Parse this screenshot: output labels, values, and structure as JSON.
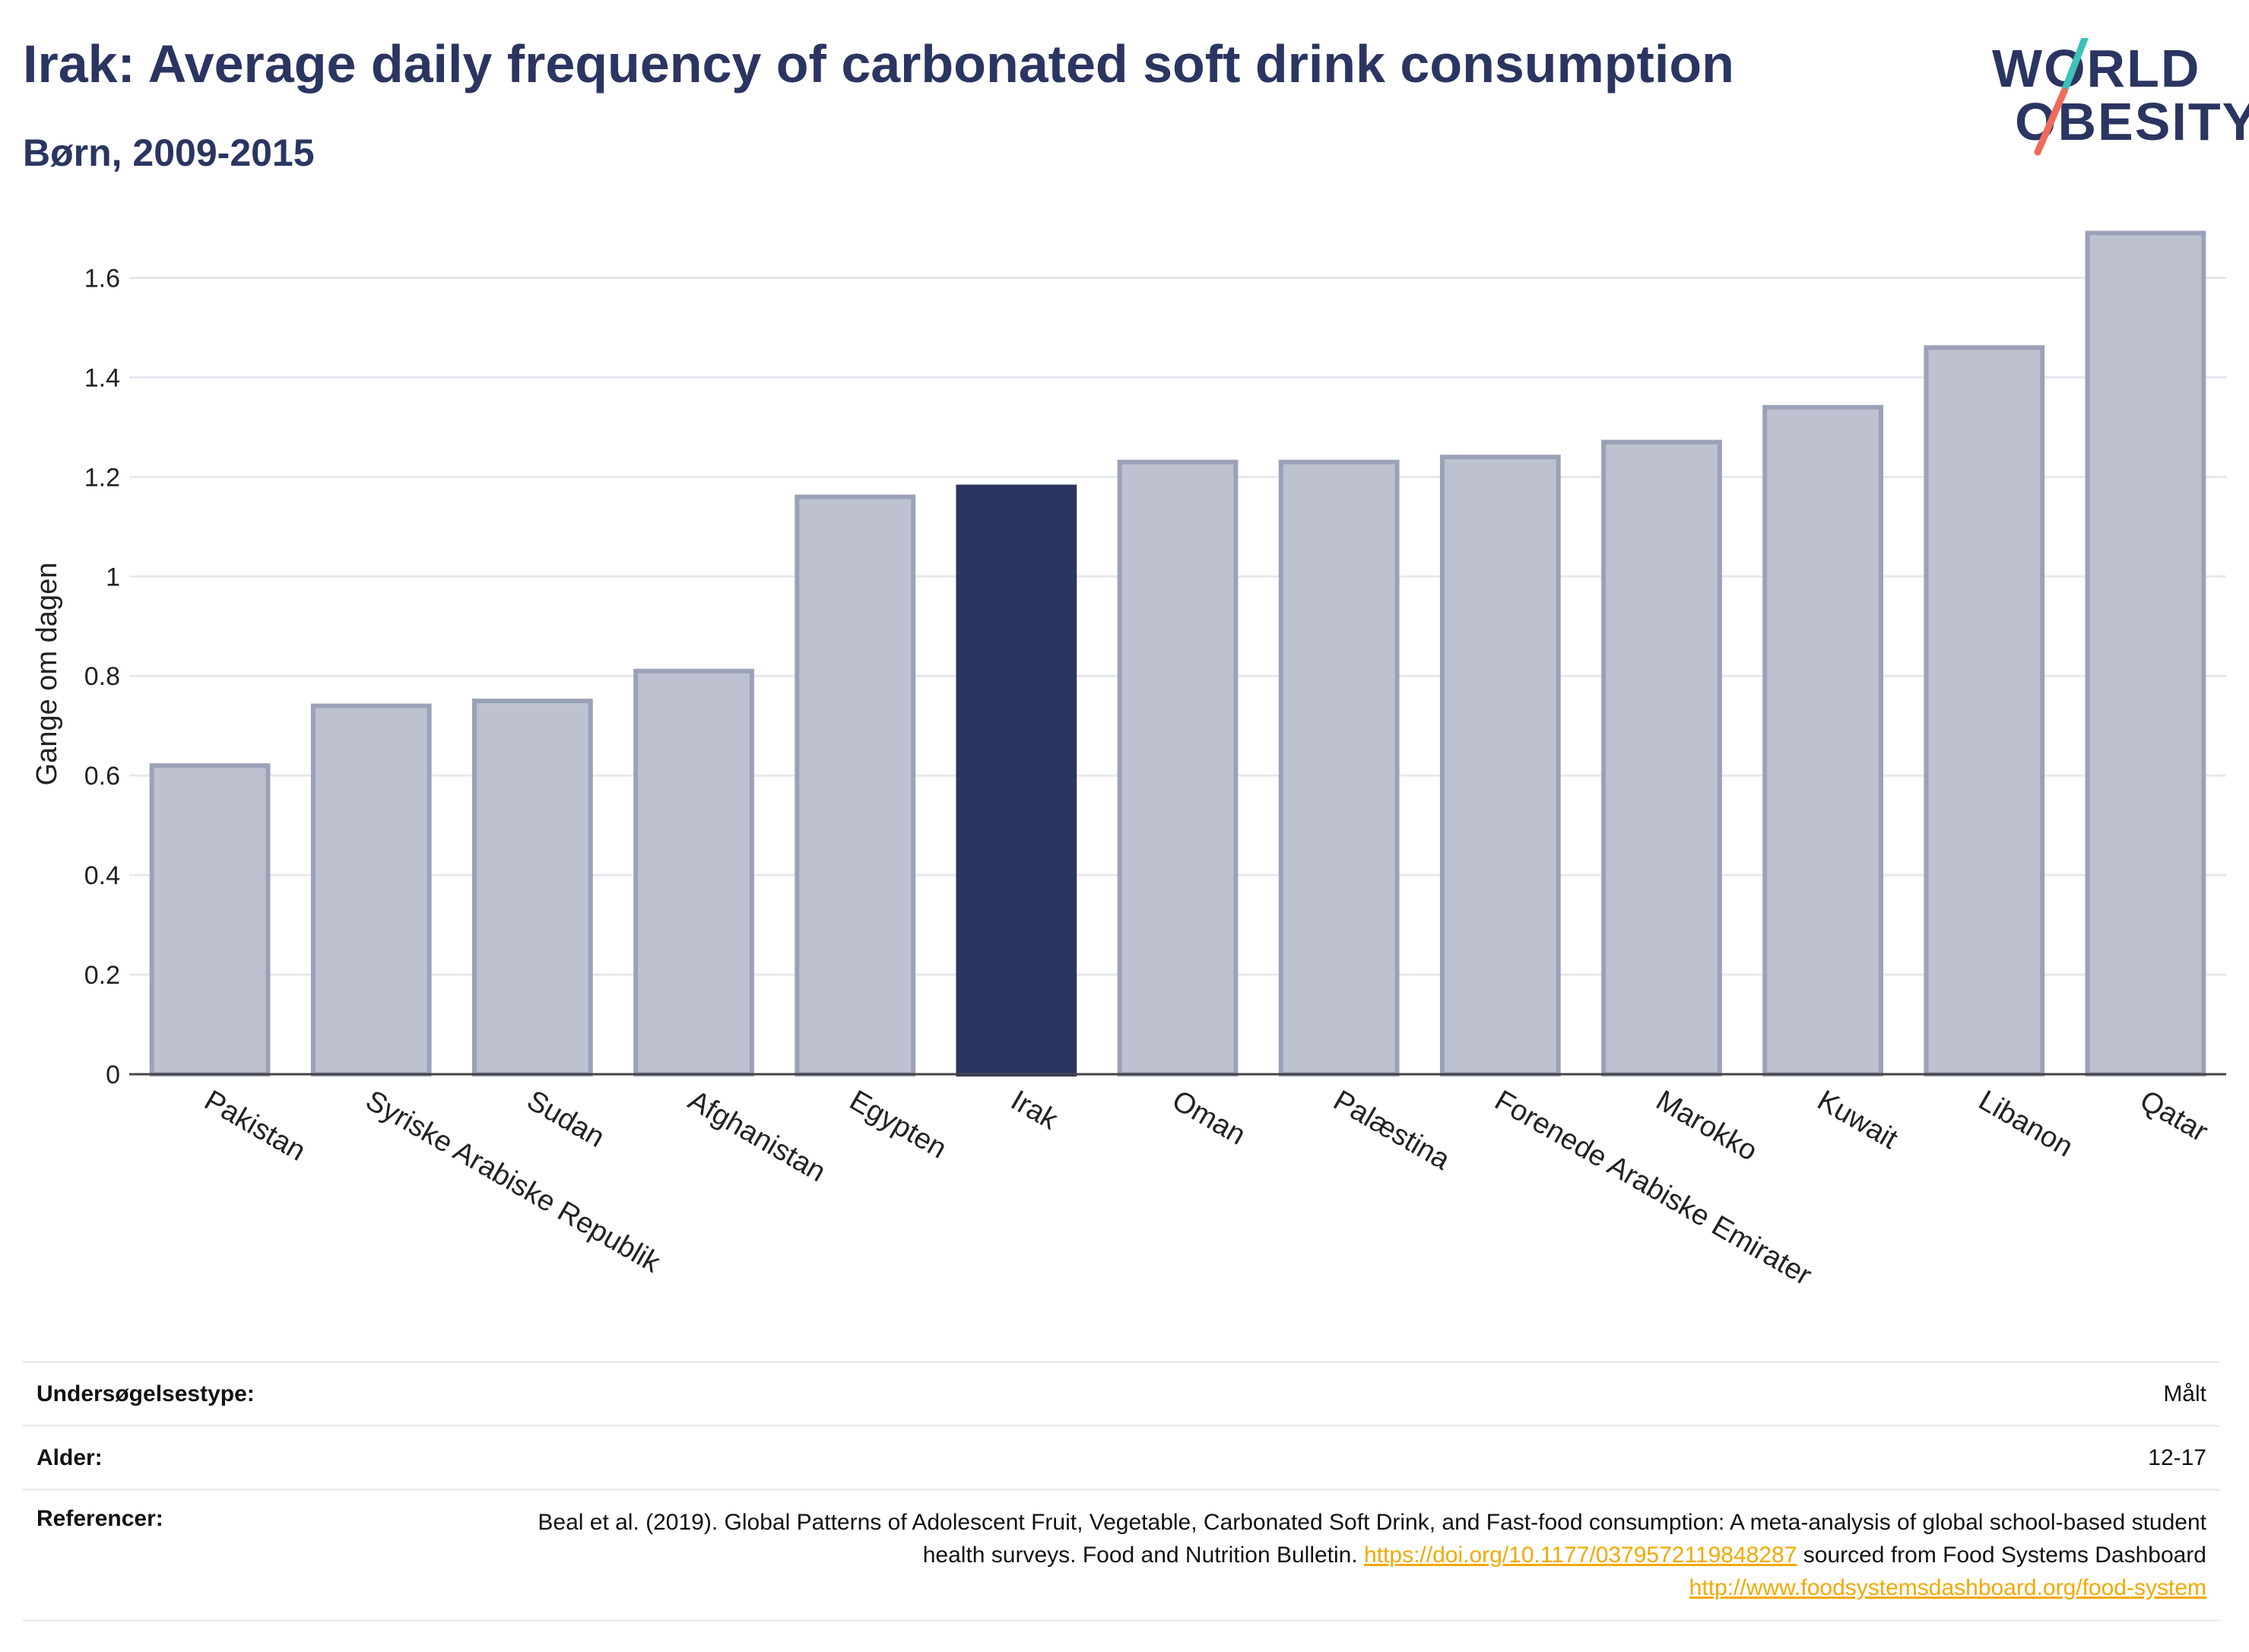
{
  "header": {
    "title": "Irak: Average daily frequency of carbonated soft drink consumption",
    "subtitle": "Børn, 2009-2015"
  },
  "logo": {
    "line1": "WORLD",
    "line2": "OBESITY",
    "accent_colors": [
      "#3ec1b8",
      "#ee6b5a"
    ]
  },
  "colors": {
    "highlight": "#2b3561",
    "bar": "#bec1cf",
    "bar_stroke": "#9ba1b8",
    "grid": "#e6e8ee",
    "link": "#f2a900"
  },
  "chart_data": {
    "type": "bar",
    "title": "Irak: Average daily frequency of carbonated soft drink consumption",
    "subtitle": "Børn, 2009-2015",
    "xlabel": "",
    "ylabel": "Gange om dagen",
    "ylim": [
      0,
      1.7
    ],
    "yticks": [
      0,
      0.2,
      0.4,
      0.6,
      0.8,
      1,
      1.2,
      1.4,
      1.6
    ],
    "ytick_labels": [
      "0",
      "0.2",
      "0.4",
      "0.6",
      "0.8",
      "1",
      "1.2",
      "1.4",
      "1.6"
    ],
    "grid": true,
    "highlight": "Irak",
    "categories": [
      "Pakistan",
      "Syriske Arabiske Republik",
      "Sudan",
      "Afghanistan",
      "Egypten",
      "Irak",
      "Oman",
      "Palæstina",
      "Forenede Arabiske Emirater",
      "Marokko",
      "Kuwait",
      "Libanon",
      "Qatar"
    ],
    "values": [
      0.62,
      0.74,
      0.75,
      0.81,
      1.16,
      1.18,
      1.23,
      1.23,
      1.24,
      1.27,
      1.34,
      1.46,
      1.69
    ]
  },
  "meta": {
    "survey_type_label": "Undersøgelsestype:",
    "survey_type_value": "Målt",
    "age_label": "Alder:",
    "age_value": "12-17",
    "references_label": "Referencer:",
    "ref_text1": "Beal et al. (2019). Global Patterns of Adolescent Fruit, Vegetable, Carbonated Soft Drink, and Fast-food consumption: A meta-analysis of global school-based student health surveys. Food and Nutrition Bulletin. ",
    "ref_link1": "https://doi.org/10.1177/0379572119848287",
    "ref_text2": " sourced from Food Systems Dashboard ",
    "ref_link2": "http://www.foodsystemsdashboard.org/food-system"
  }
}
